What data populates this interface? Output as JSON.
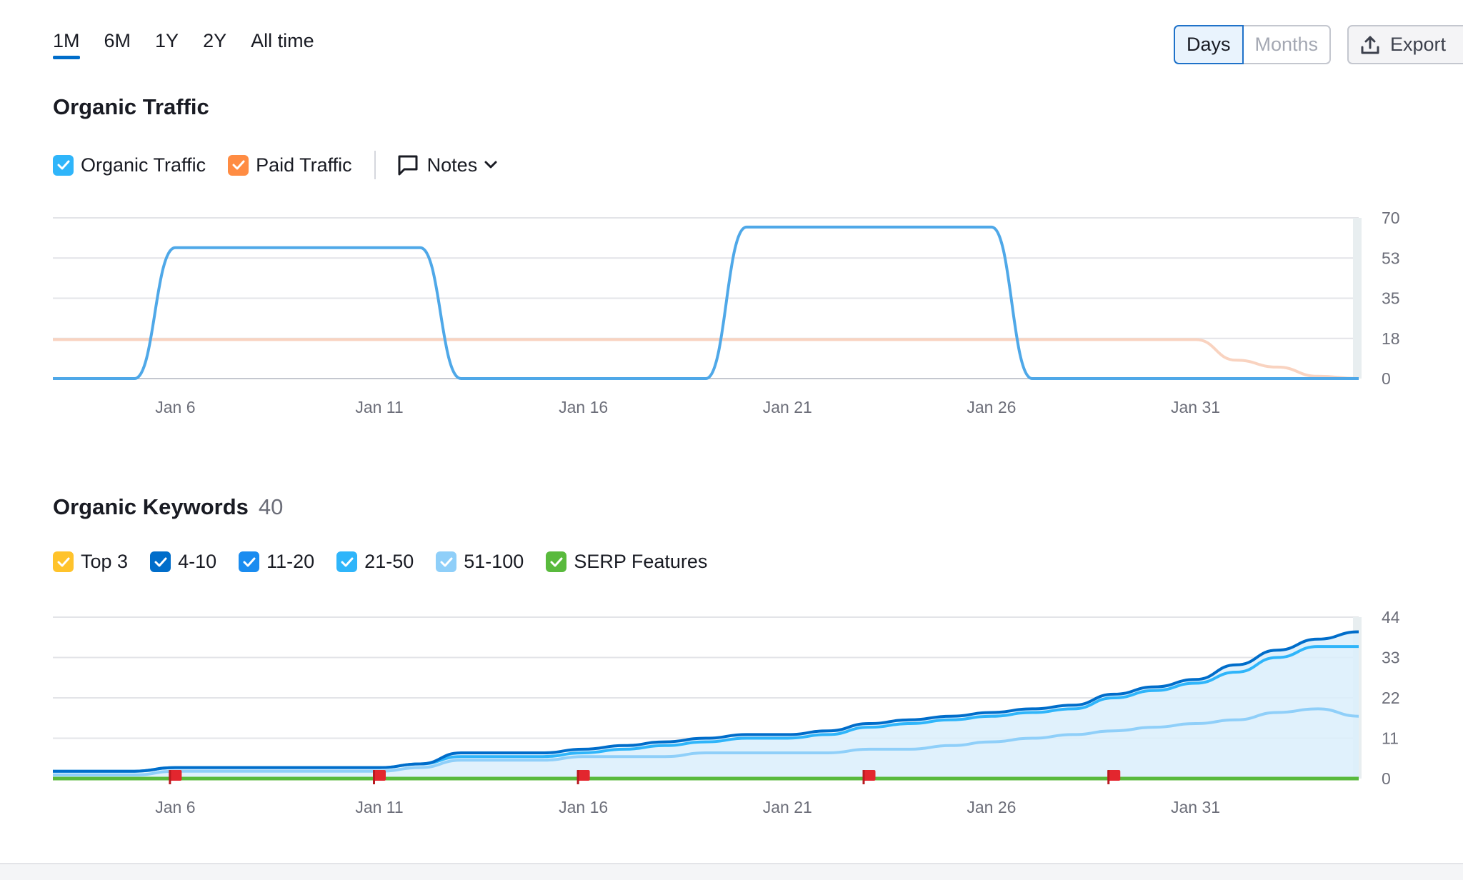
{
  "period_tabs": [
    {
      "label": "1M",
      "active": true
    },
    {
      "label": "6M",
      "active": false
    },
    {
      "label": "1Y",
      "active": false
    },
    {
      "label": "2Y",
      "active": false
    },
    {
      "label": "All time",
      "active": false
    }
  ],
  "view_toggle": {
    "days": "Days",
    "months": "Months"
  },
  "export_label": "Export",
  "traffic_section": {
    "title": "Organic Traffic",
    "legend": [
      {
        "label": "Organic Traffic",
        "color": "#2fb5fa"
      },
      {
        "label": "Paid Traffic",
        "color": "#ff8c43"
      }
    ],
    "notes_label": "Notes"
  },
  "keywords_section": {
    "title": "Organic Keywords",
    "count": "40",
    "legend": [
      {
        "label": "Top 3",
        "color": "#ffc32b"
      },
      {
        "label": "4-10",
        "color": "#006dca"
      },
      {
        "label": "11-20",
        "color": "#1a8cf0"
      },
      {
        "label": "21-50",
        "color": "#2fb5fa"
      },
      {
        "label": "51-100",
        "color": "#8fcff9"
      },
      {
        "label": "SERP Features",
        "color": "#59ba3d"
      }
    ]
  },
  "x_tick_labels": [
    "Jan 6",
    "Jan 11",
    "Jan 16",
    "Jan 21",
    "Jan 26",
    "Jan 31"
  ],
  "chart_data": [
    {
      "type": "line",
      "title": "Organic Traffic",
      "x": [
        3,
        4,
        5,
        6,
        7,
        8,
        9,
        10,
        11,
        12,
        13,
        14,
        15,
        16,
        17,
        18,
        19,
        20,
        21,
        22,
        23,
        24,
        25,
        26,
        27,
        28,
        29,
        30,
        31,
        32,
        33,
        34,
        35
      ],
      "x_tick_labels": [
        "Jan 6",
        "Jan 11",
        "Jan 16",
        "Jan 21",
        "Jan 26",
        "Jan 31"
      ],
      "y_ticks": [
        "70",
        "53",
        "35",
        "18",
        "0"
      ],
      "ylim": [
        0,
        70
      ],
      "series": [
        {
          "name": "Organic Traffic",
          "color": "#4fa8e8",
          "values": [
            0,
            0,
            0,
            57,
            57,
            57,
            57,
            57,
            57,
            57,
            0,
            0,
            0,
            0,
            0,
            0,
            0,
            66,
            66,
            66,
            66,
            66,
            66,
            66,
            0,
            0,
            0,
            0,
            0,
            0,
            0,
            0,
            0
          ]
        },
        {
          "name": "Paid Traffic",
          "color": "#f9d3c0",
          "values": [
            17,
            17,
            17,
            17,
            17,
            17,
            17,
            17,
            17,
            17,
            17,
            17,
            17,
            17,
            17,
            17,
            17,
            17,
            17,
            17,
            17,
            17,
            17,
            17,
            17,
            17,
            17,
            17,
            17,
            8,
            5,
            1,
            0
          ]
        }
      ]
    },
    {
      "type": "area",
      "title": "Organic Keywords",
      "x": [
        3,
        4,
        5,
        6,
        7,
        8,
        9,
        10,
        11,
        12,
        13,
        14,
        15,
        16,
        17,
        18,
        19,
        20,
        21,
        22,
        23,
        24,
        25,
        26,
        27,
        28,
        29,
        30,
        31,
        32,
        33,
        34,
        35
      ],
      "x_tick_labels": [
        "Jan 6",
        "Jan 11",
        "Jan 16",
        "Jan 21",
        "Jan 26",
        "Jan 31"
      ],
      "y_ticks": [
        "44",
        "33",
        "22",
        "11",
        "0"
      ],
      "ylim": [
        0,
        44
      ],
      "series": [
        {
          "name": "4-10",
          "color": "#006dca",
          "values": [
            2,
            2,
            2,
            3,
            3,
            3,
            3,
            3,
            3,
            4,
            7,
            7,
            7,
            8,
            9,
            10,
            11,
            12,
            12,
            13,
            15,
            16,
            17,
            18,
            19,
            20,
            23,
            25,
            27,
            31,
            35,
            38,
            40
          ]
        },
        {
          "name": "11-20",
          "color": "#2fb5fa",
          "values": [
            2,
            2,
            2,
            3,
            3,
            3,
            3,
            3,
            3,
            4,
            6,
            6,
            6,
            7,
            8,
            9,
            10,
            11,
            11,
            12,
            14,
            15,
            16,
            17,
            18,
            19,
            22,
            24,
            26,
            29,
            33,
            36,
            36
          ]
        },
        {
          "name": "21-50",
          "color": "#8fcff9",
          "values": [
            1,
            1,
            1,
            2,
            2,
            2,
            2,
            2,
            2,
            3,
            5,
            5,
            5,
            6,
            6,
            6,
            7,
            7,
            7,
            7,
            8,
            8,
            9,
            10,
            11,
            12,
            13,
            14,
            15,
            16,
            18,
            19,
            17
          ]
        }
      ],
      "markers_at_x": [
        6,
        11,
        16,
        23,
        29
      ]
    }
  ]
}
